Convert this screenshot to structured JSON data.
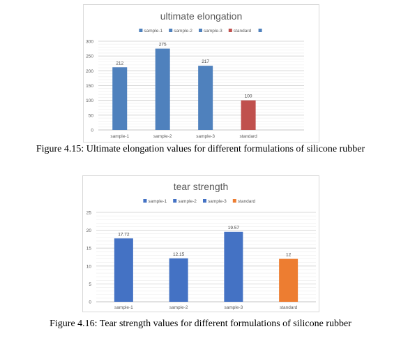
{
  "chart_data": [
    {
      "type": "bar",
      "title": "ultimate elongation",
      "categories": [
        "sample-1",
        "sample-2",
        "sample-3",
        "standard"
      ],
      "values": [
        212,
        275,
        217,
        100
      ],
      "value_labels": [
        "212",
        "275",
        "217",
        "100"
      ],
      "bar_colors": [
        "#4f81bd",
        "#4f81bd",
        "#4f81bd",
        "#c0504d"
      ],
      "legend": [
        {
          "name": "sample-1",
          "color": "#4f81bd"
        },
        {
          "name": "sample-2",
          "color": "#4f81bd"
        },
        {
          "name": "sample-3",
          "color": "#4f81bd"
        },
        {
          "name": "standard",
          "color": "#c0504d"
        },
        {
          "name": "",
          "color": "#4f81bd"
        }
      ],
      "legend_position": "top",
      "ylim": [
        0,
        300
      ],
      "yticks": [
        0,
        50,
        100,
        150,
        200,
        250,
        300
      ],
      "grid": true,
      "caption": "Figure 4.15: Ultimate elongation values for different formulations of silicone rubber"
    },
    {
      "type": "bar",
      "title": "tear strength",
      "categories": [
        "sample-1",
        "sample-2",
        "sample-3",
        "standard"
      ],
      "values": [
        17.72,
        12.15,
        19.57,
        12
      ],
      "value_labels": [
        "17.72",
        "12.15",
        "19.57",
        "12"
      ],
      "bar_colors": [
        "#4472c4",
        "#4472c4",
        "#4472c4",
        "#ed7d31"
      ],
      "legend": [
        {
          "name": "sample-1",
          "color": "#4472c4"
        },
        {
          "name": "sample-2",
          "color": "#4472c4"
        },
        {
          "name": "sample-3",
          "color": "#4472c4"
        },
        {
          "name": "standard",
          "color": "#ed7d31"
        }
      ],
      "legend_position": "top",
      "ylim": [
        0,
        25
      ],
      "yticks": [
        0,
        5,
        10,
        15,
        20,
        25
      ],
      "grid": true,
      "caption": "Figure 4.16: Tear strength values for different formulations of silicone rubber"
    }
  ]
}
